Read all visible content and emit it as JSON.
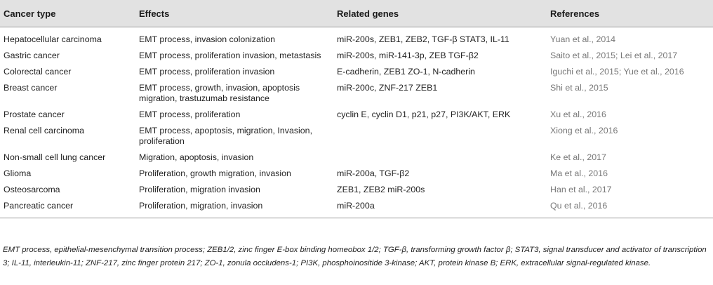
{
  "headers": [
    "Cancer type",
    "Effects",
    "Related genes",
    "References"
  ],
  "rows": [
    {
      "cancer": "Hepatocellular carcinoma",
      "effects": "EMT process, invasion colonization",
      "genes": "miR-200s, ZEB1, ZEB2, TGF-β STAT3, IL-11",
      "refs": "Yuan et al., 2014"
    },
    {
      "cancer": "Gastric cancer",
      "effects": "EMT process, proliferation invasion, metastasis",
      "genes": "miR-200s, miR-141-3p, ZEB TGF-β2",
      "refs": "Saito et al., 2015; Lei et al., 2017"
    },
    {
      "cancer": "Colorectal cancer",
      "effects": "EMT process, proliferation invasion",
      "genes": "E-cadherin, ZEB1 ZO-1, N-cadherin",
      "refs": "Iguchi et al., 2015; Yue et al., 2016"
    },
    {
      "cancer": "Breast cancer",
      "effects": "EMT process, growth, invasion, apoptosis migration, trastuzumab resistance",
      "genes": "miR-200c, ZNF-217 ZEB1",
      "refs": "Shi et al., 2015"
    },
    {
      "cancer": "Prostate cancer",
      "effects": "EMT process, proliferation",
      "genes": "cyclin E, cyclin D1, p21, p27, PI3K/AKT, ERK",
      "refs": "Xu et al., 2016"
    },
    {
      "cancer": "Renal cell carcinoma",
      "effects": "EMT process, apoptosis, migration, Invasion, proliferation",
      "genes": "",
      "refs": "Xiong et al., 2016"
    },
    {
      "cancer": "Non-small cell lung cancer",
      "effects": "Migration, apoptosis, invasion",
      "genes": "",
      "refs": "Ke et al., 2017"
    },
    {
      "cancer": "Glioma",
      "effects": "Proliferation, growth migration, invasion",
      "genes": "miR-200a, TGF-β2",
      "refs": "Ma et al., 2016"
    },
    {
      "cancer": "Osteosarcoma",
      "effects": "Proliferation, migration invasion",
      "genes": "ZEB1, ZEB2 miR-200s",
      "refs": "Han et al., 2017"
    },
    {
      "cancer": "Pancreatic cancer",
      "effects": "Proliferation, migration, invasion",
      "genes": "miR-200a",
      "refs": "Qu et al., 2016"
    }
  ],
  "footnote": "EMT process, epithelial-mesenchymal transition process; ZEB1/2, zinc finger E-box binding homeobox 1/2; TGF-β, transforming growth factor β; STAT3, signal transducer and activator of transcription 3; IL-11, interleukin-11; ZNF-217, zinc finger protein 217; ZO-1, zonula occludens-1; PI3K, phosphoinositide 3-kinase; AKT, protein kinase B; ERK, extracellular signal-regulated kinase.",
  "colors": {
    "header_bg": "#e2e2e2",
    "text": "#222222",
    "reference_text": "#777777",
    "rule": "#9a9a9a"
  }
}
